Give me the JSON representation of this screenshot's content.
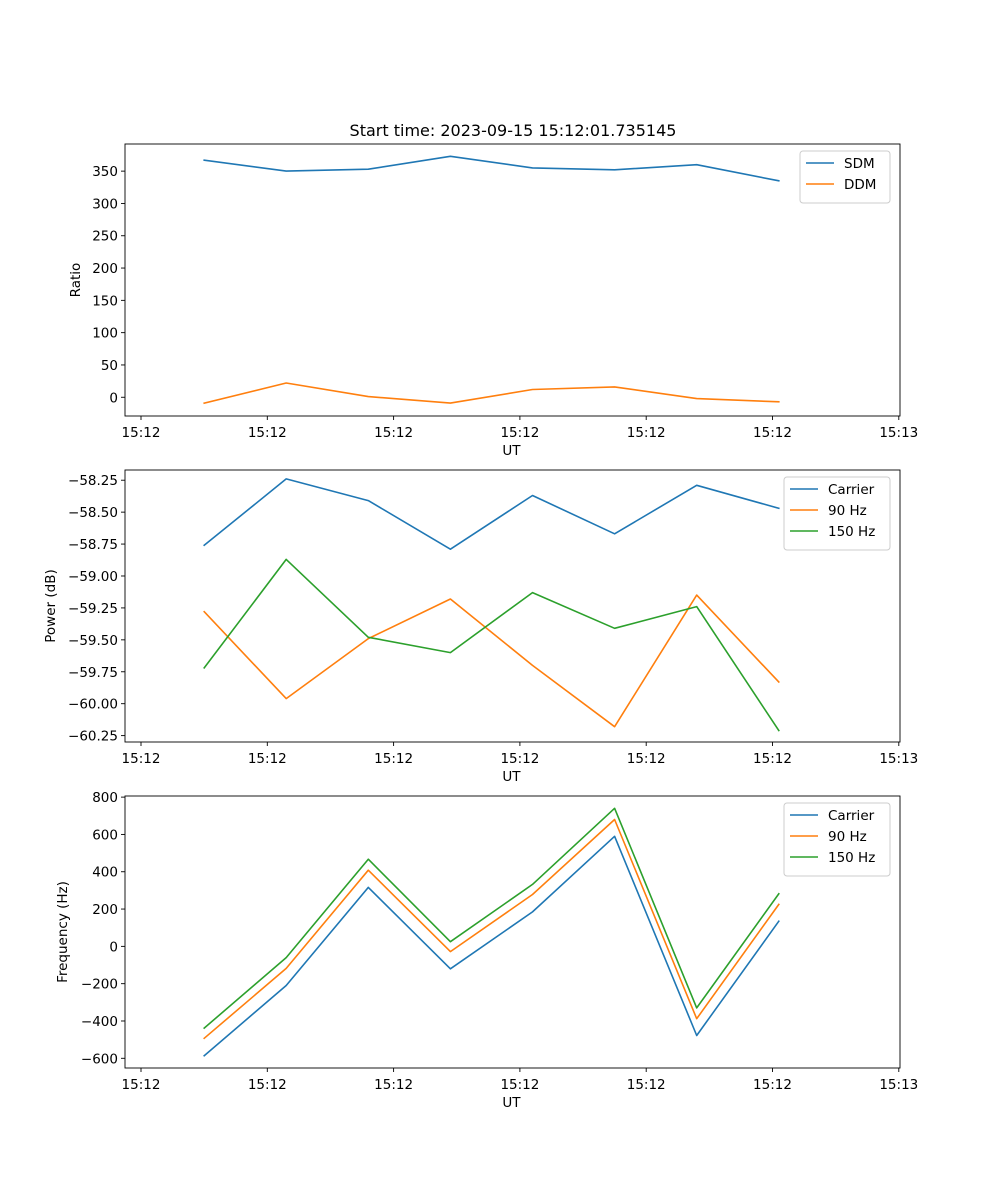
{
  "figure": {
    "title": "Start time: 2023-09-15 15:12:01.735145"
  },
  "chart_data": [
    {
      "type": "line",
      "title": "Start time: 2023-09-15 15:12:01.735145",
      "xlabel": "UT",
      "ylabel": "Ratio",
      "x_ticks": [
        "15:12",
        "15:12",
        "15:12",
        "15:12",
        "15:12",
        "15:12",
        "15:13"
      ],
      "x_tick_pos": [
        0,
        1,
        2,
        3,
        4,
        5,
        6
      ],
      "xlim": [
        -0.13,
        6.0
      ],
      "x": [
        0.5,
        1.15,
        1.8,
        2.45,
        3.1,
        3.75,
        4.4,
        5.05
      ],
      "ylim": [
        -29,
        392
      ],
      "y_ticks": [
        0,
        50,
        100,
        150,
        200,
        250,
        300,
        350
      ],
      "legend": "upper right",
      "series": [
        {
          "name": "SDM",
          "color": "#1f77b4",
          "values": [
            367,
            350,
            353,
            373,
            355,
            352,
            360,
            335
          ]
        },
        {
          "name": "DDM",
          "color": "#ff7f0e",
          "values": [
            -9,
            22,
            1,
            -9,
            12,
            16,
            -2,
            -7
          ]
        }
      ]
    },
    {
      "type": "line",
      "title": "",
      "xlabel": "UT",
      "ylabel": "Power (dB)",
      "x_ticks": [
        "15:12",
        "15:12",
        "15:12",
        "15:12",
        "15:12",
        "15:12",
        "15:13"
      ],
      "x_tick_pos": [
        0,
        1,
        2,
        3,
        4,
        5,
        6
      ],
      "xlim": [
        -0.13,
        6.0
      ],
      "x": [
        0.5,
        1.15,
        1.8,
        2.45,
        3.1,
        3.75,
        4.4,
        5.05
      ],
      "ylim": [
        -60.3,
        -58.17
      ],
      "y_ticks": [
        -60.25,
        -60.0,
        -59.75,
        -59.5,
        -59.25,
        -59.0,
        -58.75,
        -58.5,
        -58.25
      ],
      "y_tick_labels": [
        "−60.25",
        "−60.00",
        "−59.75",
        "−59.50",
        "−59.25",
        "−59.00",
        "−58.75",
        "−58.50",
        "−58.25"
      ],
      "legend": "upper right",
      "series": [
        {
          "name": "Carrier",
          "color": "#1f77b4",
          "values": [
            -58.76,
            -58.24,
            -58.41,
            -58.79,
            -58.37,
            -58.67,
            -58.29,
            -58.47
          ]
        },
        {
          "name": "90 Hz",
          "color": "#ff7f0e",
          "values": [
            -59.28,
            -59.96,
            -59.49,
            -59.18,
            -59.7,
            -60.18,
            -59.15,
            -59.83
          ]
        },
        {
          "name": "150 Hz",
          "color": "#2ca02c",
          "values": [
            -59.72,
            -58.87,
            -59.48,
            -59.6,
            -59.13,
            -59.41,
            -59.24,
            -60.21
          ]
        }
      ]
    },
    {
      "type": "line",
      "title": "",
      "xlabel": "UT",
      "ylabel": "Frequency (Hz)",
      "x_ticks": [
        "15:12",
        "15:12",
        "15:12",
        "15:12",
        "15:12",
        "15:12",
        "15:13"
      ],
      "x_tick_pos": [
        0,
        1,
        2,
        3,
        4,
        5,
        6
      ],
      "xlim": [
        -0.13,
        6.0
      ],
      "x": [
        0.5,
        1.15,
        1.8,
        2.45,
        3.1,
        3.75,
        4.4,
        5.05
      ],
      "ylim": [
        -652,
        806
      ],
      "y_ticks": [
        -600,
        -400,
        -200,
        0,
        200,
        400,
        600,
        800
      ],
      "y_tick_labels": [
        "−600",
        "−400",
        "−200",
        "0",
        "200",
        "400",
        "600",
        "800"
      ],
      "legend": "upper right",
      "series": [
        {
          "name": "Carrier",
          "color": "#1f77b4",
          "values": [
            -586,
            -210,
            316,
            -120,
            185,
            590,
            -478,
            135
          ]
        },
        {
          "name": "90 Hz",
          "color": "#ff7f0e",
          "values": [
            -493,
            -118,
            408,
            -28,
            278,
            680,
            -388,
            225
          ]
        },
        {
          "name": "150 Hz",
          "color": "#2ca02c",
          "values": [
            -438,
            -60,
            467,
            25,
            332,
            740,
            -330,
            282
          ]
        }
      ]
    }
  ]
}
